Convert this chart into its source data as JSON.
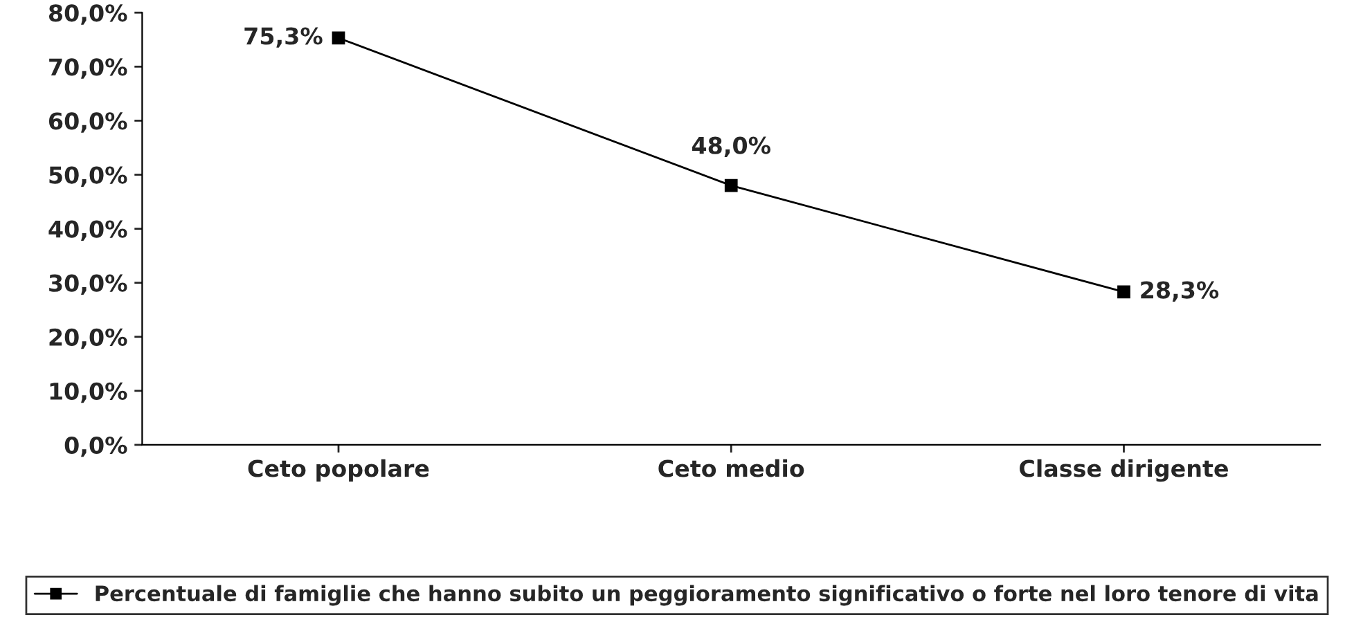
{
  "chart_data": {
    "type": "line",
    "categories": [
      "Ceto popolare",
      "Ceto medio",
      "Classe dirigente"
    ],
    "series": [
      {
        "name": "Percentuale di famiglie che hanno subito un peggioramento significativo o forte nel loro tenore di vita",
        "color": "#000000",
        "values": [
          75.3,
          48.0,
          28.3
        ],
        "value_labels": [
          "75,3%",
          "48,0%",
          "28,3%"
        ]
      }
    ],
    "ylim": [
      0,
      80
    ],
    "yticks": [
      {
        "value": 0,
        "label": "0,0%"
      },
      {
        "value": 10,
        "label": "10,0%"
      },
      {
        "value": 20,
        "label": "20,0%"
      },
      {
        "value": 30,
        "label": "30,0%"
      },
      {
        "value": 40,
        "label": "40,0%"
      },
      {
        "value": 50,
        "label": "50,0%"
      },
      {
        "value": 60,
        "label": "60,0%"
      },
      {
        "value": 70,
        "label": "70,0%"
      },
      {
        "value": 80,
        "label": "80,0%"
      }
    ],
    "marker": "square",
    "line_style": "solid",
    "grid": false,
    "legend": "bottom"
  }
}
